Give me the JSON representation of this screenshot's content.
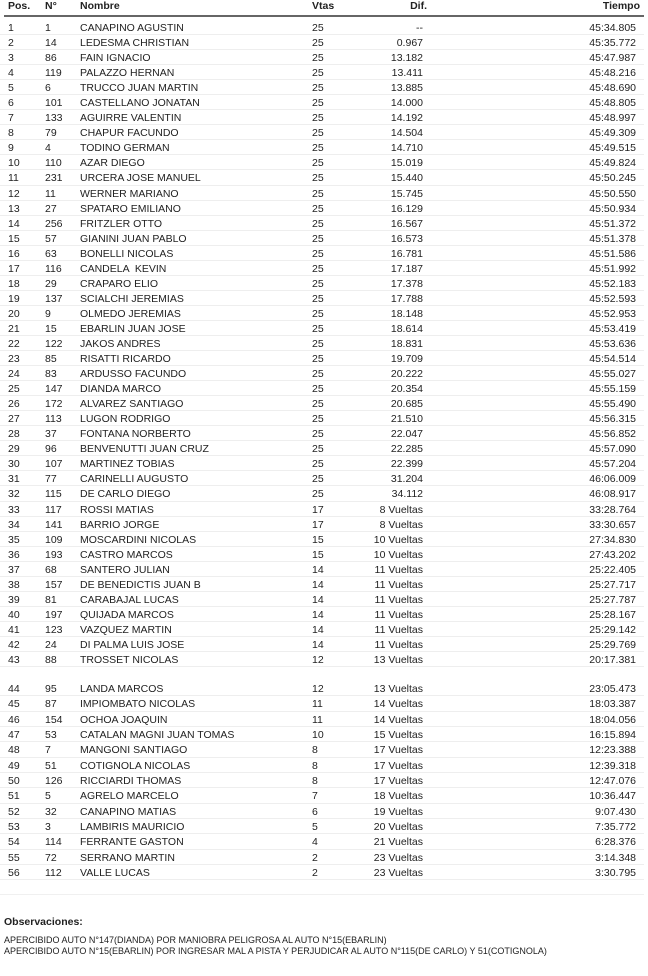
{
  "header": {
    "pos": "Pos.",
    "no": "N°",
    "name": "Nombre",
    "vtas": "Vtas",
    "dif": "Dif.",
    "time": "Tiempo"
  },
  "rows": [
    [
      "1",
      "1",
      "CANAPINO AGUSTIN",
      "25",
      "--",
      "45:34.805"
    ],
    [
      "2",
      "14",
      "LEDESMA CHRISTIAN",
      "25",
      "0.967",
      "45:35.772"
    ],
    [
      "3",
      "86",
      "FAIN IGNACIO",
      "25",
      "13.182",
      "45:47.987"
    ],
    [
      "4",
      "119",
      "PALAZZO HERNAN",
      "25",
      "13.411",
      "45:48.216"
    ],
    [
      "5",
      "6",
      "TRUCCO JUAN MARTIN",
      "25",
      "13.885",
      "45:48.690"
    ],
    [
      "6",
      "101",
      "CASTELLANO JONATAN",
      "25",
      "14.000",
      "45:48.805"
    ],
    [
      "7",
      "133",
      "AGUIRRE VALENTIN",
      "25",
      "14.192",
      "45:48.997"
    ],
    [
      "8",
      "79",
      "CHAPUR FACUNDO",
      "25",
      "14.504",
      "45:49.309"
    ],
    [
      "9",
      "4",
      "TODINO GERMAN",
      "25",
      "14.710",
      "45:49.515"
    ],
    [
      "10",
      "110",
      "AZAR DIEGO",
      "25",
      "15.019",
      "45:49.824"
    ],
    [
      "11",
      "231",
      "URCERA JOSE MANUEL",
      "25",
      "15.440",
      "45:50.245"
    ],
    [
      "12",
      "11",
      "WERNER MARIANO",
      "25",
      "15.745",
      "45:50.550"
    ],
    [
      "13",
      "27",
      "SPATARO EMILIANO",
      "25",
      "16.129",
      "45:50.934"
    ],
    [
      "14",
      "256",
      "FRITZLER OTTO",
      "25",
      "16.567",
      "45:51.372"
    ],
    [
      "15",
      "57",
      "GIANINI JUAN PABLO",
      "25",
      "16.573",
      "45:51.378"
    ],
    [
      "16",
      "63",
      "BONELLI NICOLAS",
      "25",
      "16.781",
      "45:51.586"
    ],
    [
      "17",
      "116",
      "CANDELA  KEVIN",
      "25",
      "17.187",
      "45:51.992"
    ],
    [
      "18",
      "29",
      "CRAPARO ELIO",
      "25",
      "17.378",
      "45:52.183"
    ],
    [
      "19",
      "137",
      "SCIALCHI JEREMIAS",
      "25",
      "17.788",
      "45:52.593"
    ],
    [
      "20",
      "9",
      "OLMEDO JEREMIAS",
      "25",
      "18.148",
      "45:52.953"
    ],
    [
      "21",
      "15",
      "EBARLIN JUAN JOSE",
      "25",
      "18.614",
      "45:53.419"
    ],
    [
      "22",
      "122",
      "JAKOS ANDRES",
      "25",
      "18.831",
      "45:53.636"
    ],
    [
      "23",
      "85",
      "RISATTI RICARDO",
      "25",
      "19.709",
      "45:54.514"
    ],
    [
      "24",
      "83",
      "ARDUSSO FACUNDO",
      "25",
      "20.222",
      "45:55.027"
    ],
    [
      "25",
      "147",
      "DIANDA MARCO",
      "25",
      "20.354",
      "45:55.159"
    ],
    [
      "26",
      "172",
      "ALVAREZ SANTIAGO",
      "25",
      "20.685",
      "45:55.490"
    ],
    [
      "27",
      "113",
      "LUGON RODRIGO",
      "25",
      "21.510",
      "45:56.315"
    ],
    [
      "28",
      "37",
      "FONTANA NORBERTO",
      "25",
      "22.047",
      "45:56.852"
    ],
    [
      "29",
      "96",
      "BENVENUTTI JUAN CRUZ",
      "25",
      "22.285",
      "45:57.090"
    ],
    [
      "30",
      "107",
      "MARTINEZ TOBIAS",
      "25",
      "22.399",
      "45:57.204"
    ],
    [
      "31",
      "77",
      "CARINELLI AUGUSTO",
      "25",
      "31.204",
      "46:06.009"
    ],
    [
      "32",
      "115",
      "DE CARLO DIEGO",
      "25",
      "34.112",
      "46:08.917"
    ],
    [
      "33",
      "117",
      "ROSSI MATIAS",
      "17",
      "8 Vueltas",
      "33:28.764"
    ],
    [
      "34",
      "141",
      "BARRIO JORGE",
      "17",
      "8 Vueltas",
      "33:30.657"
    ],
    [
      "35",
      "109",
      "MOSCARDINI NICOLAS",
      "15",
      "10 Vueltas",
      "27:34.830"
    ],
    [
      "36",
      "193",
      "CASTRO MARCOS",
      "15",
      "10 Vueltas",
      "27:43.202"
    ],
    [
      "37",
      "68",
      "SANTERO JULIAN",
      "14",
      "11 Vueltas",
      "25:22.405"
    ],
    [
      "38",
      "157",
      "DE BENEDICTIS JUAN B",
      "14",
      "11 Vueltas",
      "25:27.717"
    ],
    [
      "39",
      "81",
      "CARABAJAL LUCAS",
      "14",
      "11 Vueltas",
      "25:27.787"
    ],
    [
      "40",
      "197",
      "QUIJADA MARCOS",
      "14",
      "11 Vueltas",
      "25:28.167"
    ],
    [
      "41",
      "123",
      "VAZQUEZ MARTIN",
      "14",
      "11 Vueltas",
      "25:29.142"
    ],
    [
      "42",
      "24",
      "DI PALMA LUIS JOSE",
      "14",
      "11 Vueltas",
      "25:29.769"
    ],
    [
      "43",
      "88",
      "TROSSET NICOLAS",
      "12",
      "13 Vueltas",
      "20:17.381"
    ],
    [
      "44",
      "95",
      "LANDA MARCOS",
      "12",
      "13 Vueltas",
      "23:05.473"
    ],
    [
      "45",
      "87",
      "IMPIOMBATO NICOLAS",
      "11",
      "14 Vueltas",
      "18:03.387"
    ],
    [
      "46",
      "154",
      "OCHOA JOAQUIN",
      "11",
      "14 Vueltas",
      "18:04.056"
    ],
    [
      "47",
      "53",
      "CATALAN MAGNI JUAN TOMAS",
      "10",
      "15 Vueltas",
      "16:15.894"
    ],
    [
      "48",
      "7",
      "MANGONI SANTIAGO",
      "8",
      "17 Vueltas",
      "12:23.388"
    ],
    [
      "49",
      "51",
      "COTIGNOLA NICOLAS",
      "8",
      "17 Vueltas",
      "12:39.318"
    ],
    [
      "50",
      "126",
      "RICCIARDI THOMAS",
      "8",
      "17 Vueltas",
      "12:47.076"
    ],
    [
      "51",
      "5",
      "AGRELO MARCELO",
      "7",
      "18 Vueltas",
      "10:36.447"
    ],
    [
      "52",
      "32",
      "CANAPINO MATIAS",
      "6",
      "19 Vueltas",
      "9:07.430"
    ],
    [
      "53",
      "3",
      "LAMBIRIS MAURICIO",
      "5",
      "20 Vueltas",
      "7:35.772"
    ],
    [
      "54",
      "114",
      "FERRANTE GASTON",
      "4",
      "21 Vueltas",
      "6:28.376"
    ],
    [
      "55",
      "72",
      "SERRANO MARTIN",
      "2",
      "23 Vueltas",
      "3:14.348"
    ],
    [
      "56",
      "112",
      "VALLE LUCAS",
      "2",
      "23 Vueltas",
      "3:30.795"
    ]
  ],
  "observations": {
    "title": "Observaciones:",
    "notes": [
      "APERCIBIDO AUTO N°147(DIANDA) POR MANIOBRA PELIGROSA AL AUTO N°15(EBARLIN)",
      "APERCIBIDO AUTO N°15(EBARLIN) POR INGRESAR MAL A PISTA Y PERJUDICAR AL AUTO N°115(DE CARLO) Y 51(COTIGNOLA)"
    ]
  }
}
